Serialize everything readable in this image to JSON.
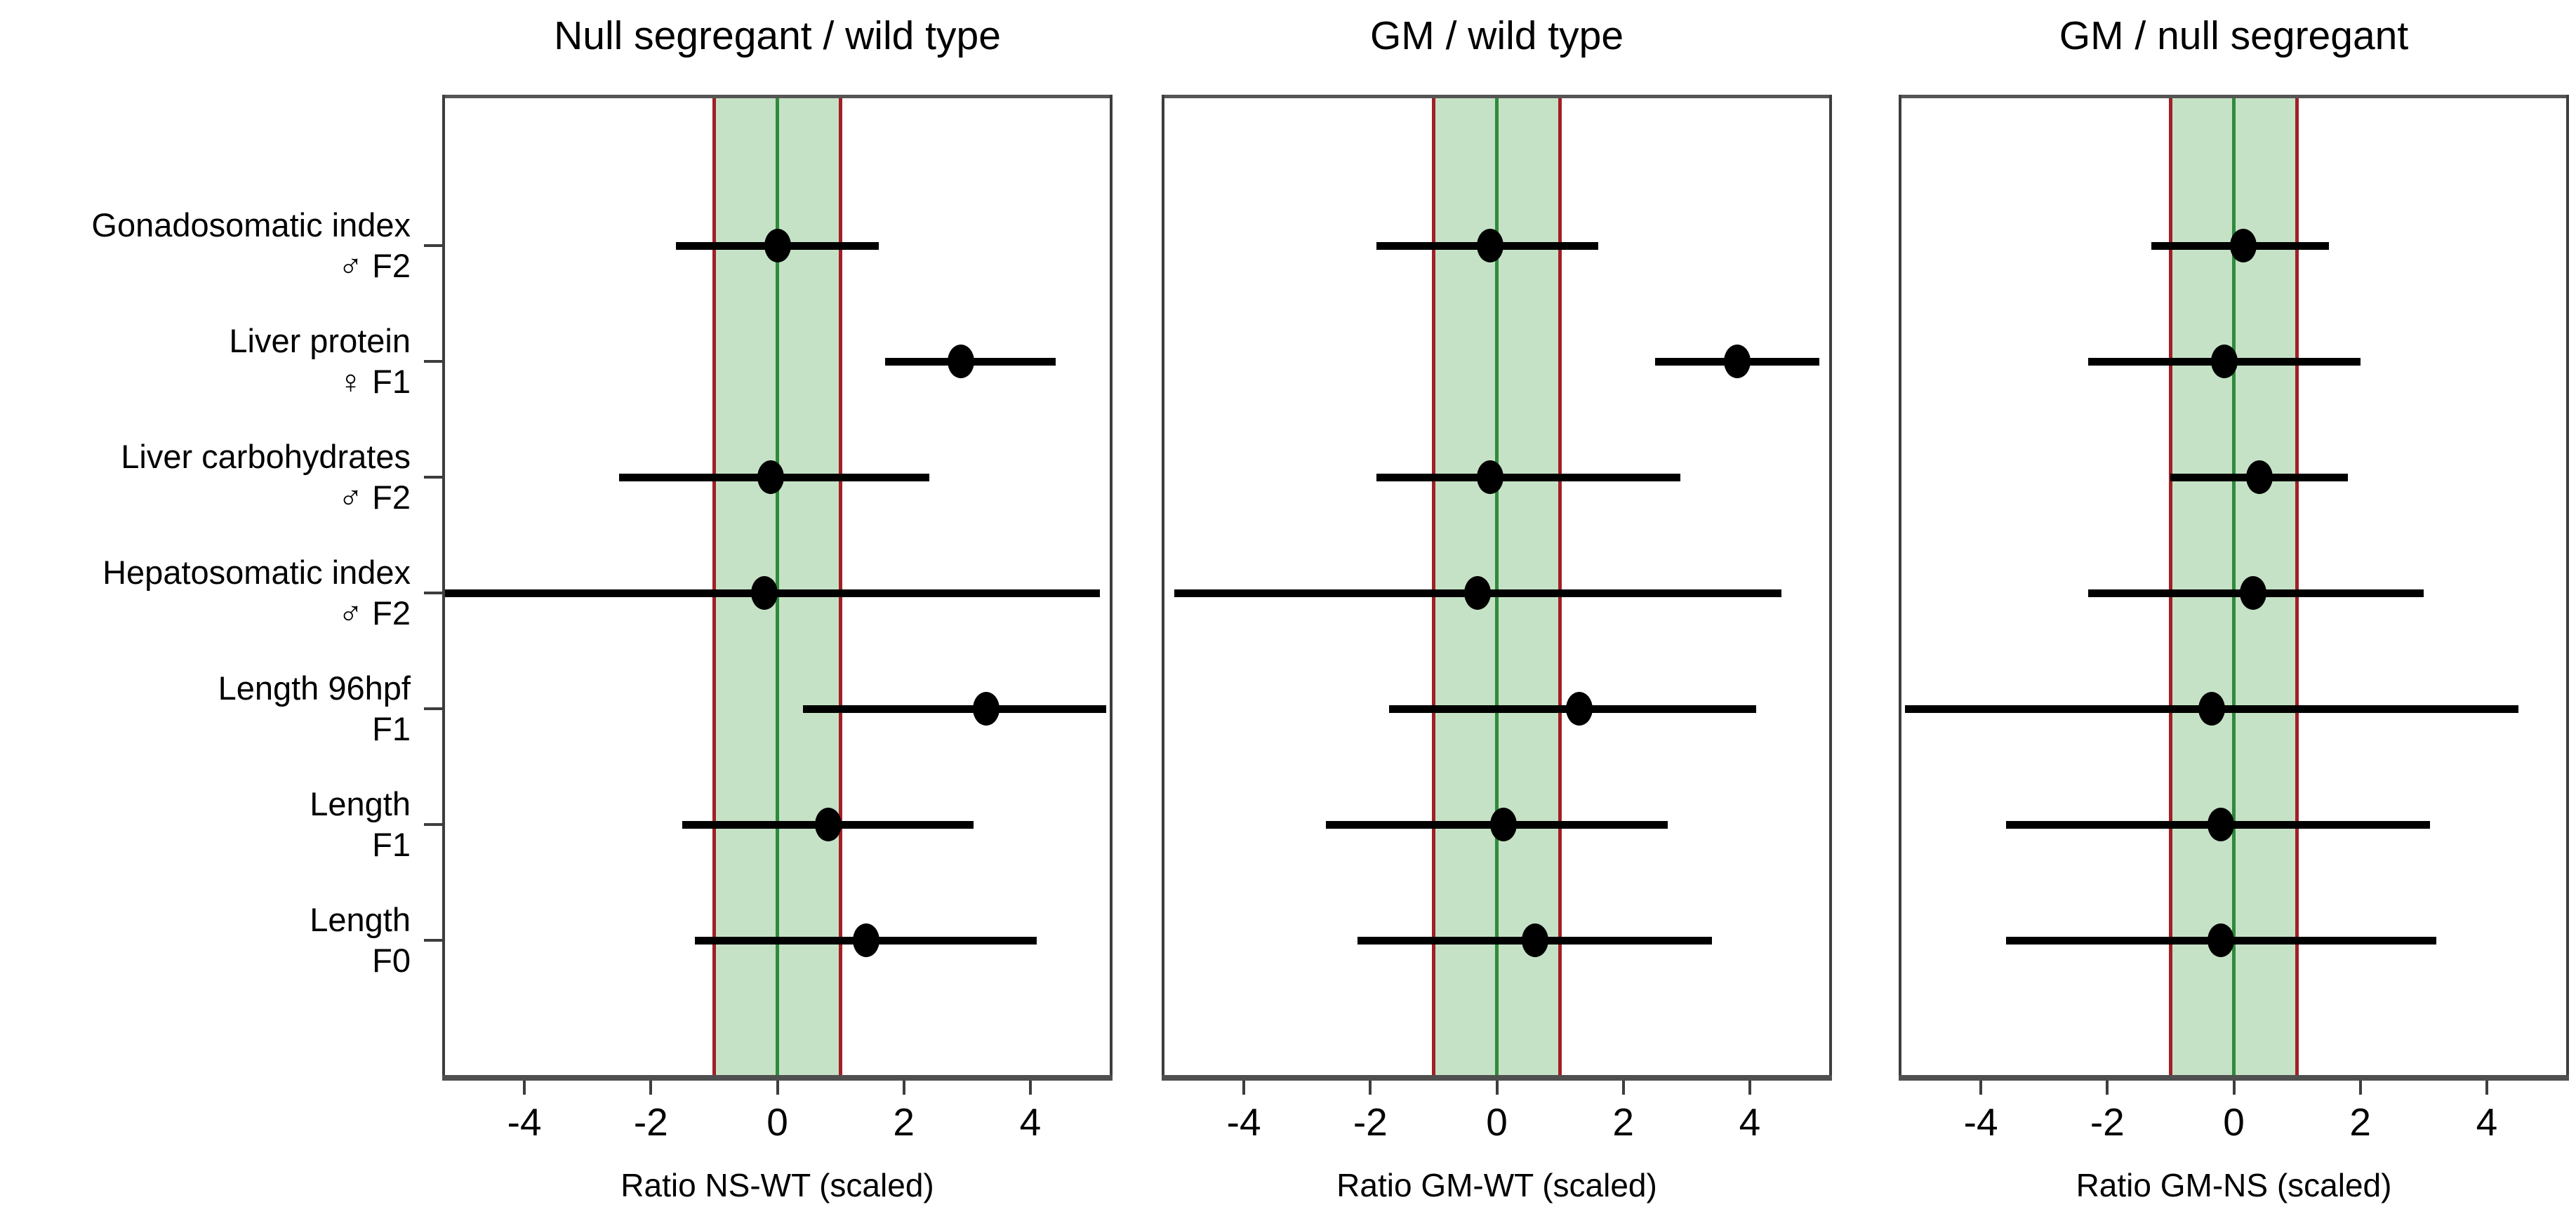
{
  "figure_background": "#ffffff",
  "colors": {
    "equivalence_band_fill": "#c6e2c6",
    "equivalence_band_edge": "#a12026",
    "zero_line": "#2e8b3c",
    "marker": "#000000",
    "panel_border": "#3d3d3d",
    "text": "#000000"
  },
  "chart_data": {
    "type": "scatter",
    "subtype": "forest-plot-dot-with-ci",
    "orientation": "horizontal",
    "grid": false,
    "legend": "none",
    "categories": [
      {
        "line1": "Gonadosomatic index",
        "line2": "♂ F2"
      },
      {
        "line1": "Liver protein",
        "line2": "♀ F1"
      },
      {
        "line1": "Liver carbohydrates",
        "line2": "♂ F2"
      },
      {
        "line1": "Hepatosomatic index",
        "line2": "♂ F2"
      },
      {
        "line1": "Length 96hpf",
        "line2": "F1"
      },
      {
        "line1": "Length",
        "line2": "F1"
      },
      {
        "line1": "Length",
        "line2": "F0"
      }
    ],
    "equivalence_band": {
      "low": -1,
      "high": 1,
      "center": 0
    },
    "xlim": [
      -5.3,
      5.3
    ],
    "xticks": [
      -4,
      -2,
      0,
      2,
      4
    ],
    "panels": [
      {
        "title": "Null segregant / wild type",
        "xlabel": "Ratio NS-WT (scaled)",
        "points": [
          {
            "est": 0.0,
            "lo": -1.6,
            "hi": 1.6
          },
          {
            "est": 2.9,
            "lo": 1.7,
            "hi": 4.4
          },
          {
            "est": -0.1,
            "lo": -2.5,
            "hi": 2.4
          },
          {
            "est": -0.2,
            "lo": -5.3,
            "hi": 5.1
          },
          {
            "est": 3.3,
            "lo": 0.4,
            "hi": 5.2
          },
          {
            "est": 0.8,
            "lo": -1.5,
            "hi": 3.1
          },
          {
            "est": 1.4,
            "lo": -1.3,
            "hi": 4.1
          }
        ]
      },
      {
        "title": "GM / wild type",
        "xlabel": "Ratio GM-WT (scaled)",
        "points": [
          {
            "est": -0.1,
            "lo": -1.9,
            "hi": 1.6
          },
          {
            "est": 3.8,
            "lo": 2.5,
            "hi": 5.1
          },
          {
            "est": -0.1,
            "lo": -1.9,
            "hi": 2.9
          },
          {
            "est": -0.3,
            "lo": -5.1,
            "hi": 4.5
          },
          {
            "est": 1.3,
            "lo": -1.7,
            "hi": 4.1
          },
          {
            "est": 0.1,
            "lo": -2.7,
            "hi": 2.7
          },
          {
            "est": 0.6,
            "lo": -2.2,
            "hi": 3.4
          }
        ]
      },
      {
        "title": "GM / null segregant",
        "xlabel": "Ratio GM-NS (scaled)",
        "points": [
          {
            "est": 0.15,
            "lo": -1.3,
            "hi": 1.5
          },
          {
            "est": -0.15,
            "lo": -2.3,
            "hi": 2.0
          },
          {
            "est": 0.4,
            "lo": -1.0,
            "hi": 1.8
          },
          {
            "est": 0.3,
            "lo": -2.3,
            "hi": 3.0
          },
          {
            "est": -0.35,
            "lo": -5.2,
            "hi": 4.5
          },
          {
            "est": -0.2,
            "lo": -3.6,
            "hi": 3.1
          },
          {
            "est": -0.2,
            "lo": -3.6,
            "hi": 3.2
          }
        ]
      }
    ]
  }
}
